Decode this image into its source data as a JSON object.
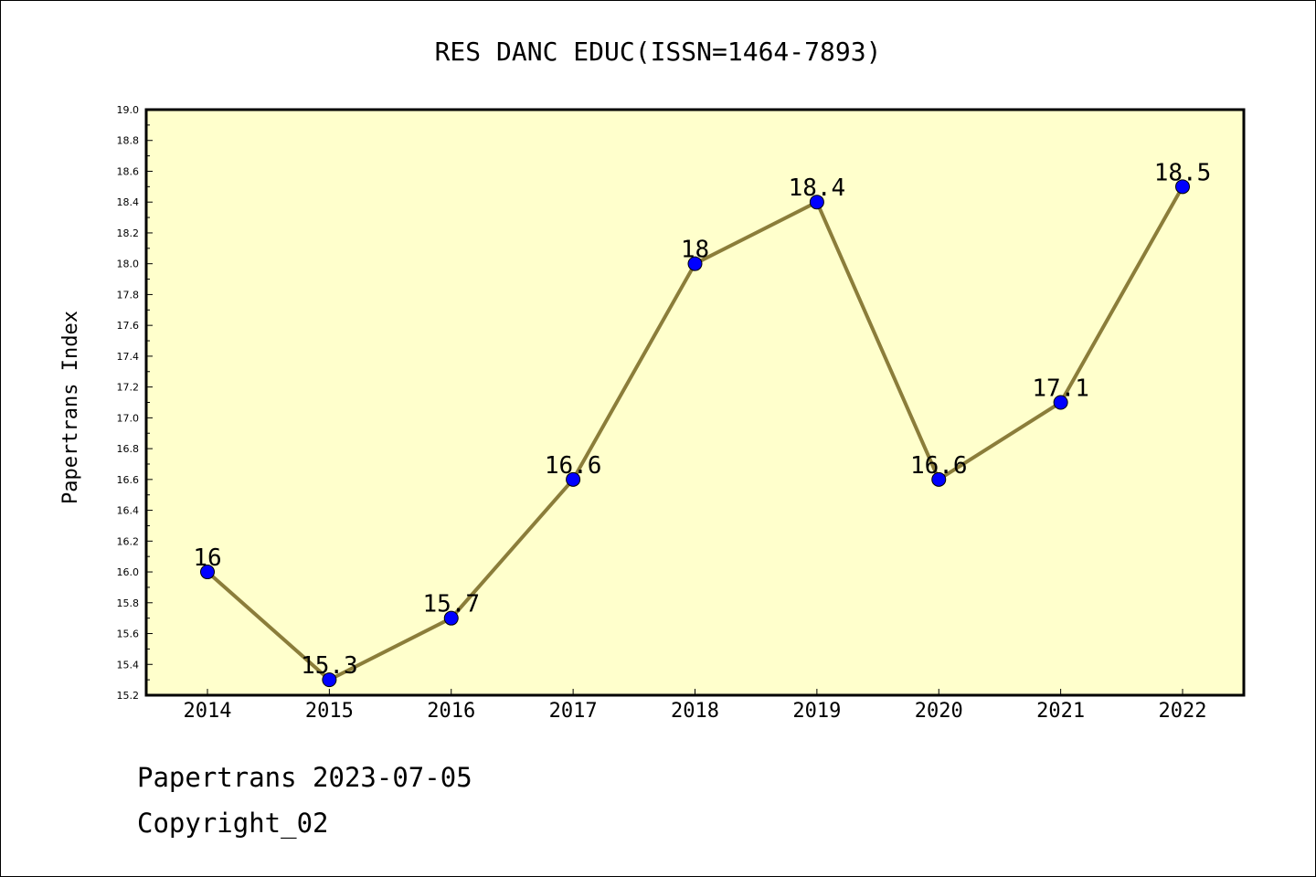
{
  "chart_data": {
    "type": "line",
    "title": "RES DANC EDUC(ISSN=1464-7893)",
    "ylabel": "Papertrans Index",
    "xlabel": "",
    "categories": [
      "2014",
      "2015",
      "2016",
      "2017",
      "2018",
      "2019",
      "2020",
      "2021",
      "2022"
    ],
    "values": [
      16.0,
      15.3,
      15.7,
      16.6,
      18.0,
      18.4,
      16.6,
      17.1,
      18.5
    ],
    "data_labels": [
      "16",
      "15.3",
      "15.7",
      "16.6",
      "18",
      "18.4",
      "16.6",
      "17.1",
      "18.5"
    ],
    "ylim": [
      15.2,
      19.0
    ],
    "yticks": [
      "15.2",
      "15.4",
      "15.6",
      "15.8",
      "16.0",
      "16.2",
      "16.4",
      "16.6",
      "16.8",
      "17.0",
      "17.2",
      "17.4",
      "17.6",
      "17.8",
      "18.0",
      "18.2",
      "18.4",
      "18.6",
      "18.8",
      "19.0"
    ],
    "grid": false,
    "legend": "none",
    "colors": {
      "plot_background": "#ffffcc",
      "line": "#8b7d3a",
      "marker": "#0000ff"
    }
  },
  "footer": {
    "line1": "Papertrans 2023-07-05",
    "line2": "Copyright_02"
  }
}
